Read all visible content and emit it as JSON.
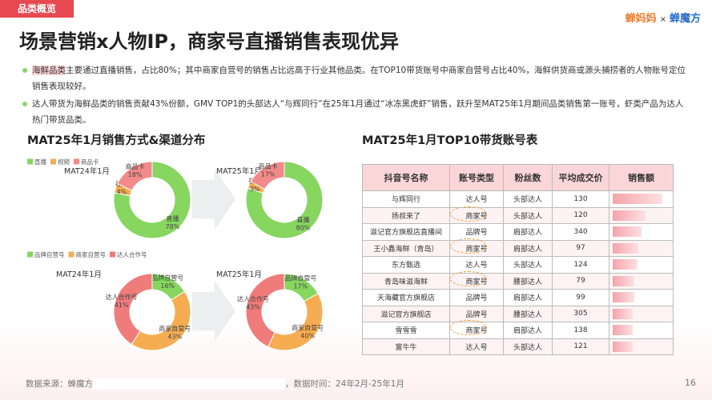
{
  "header": {
    "tag": "品类概览",
    "title": "场景营销x人物IP，商家号直播销售表现优异",
    "logos": [
      "蝉妈妈",
      "×",
      "蝉魔方"
    ]
  },
  "bullets": [
    [
      "海鲜品类",
      "主要通过直播销售，占比80%；其中商家自营号的销售占比远高于行业其他品类。在TOP10带货账号中商家自营号占比40%，海鲜供货商或源头捕捞者的人物账号定位销售表现较好。"
    ],
    [
      "达人带货为海鲜品类的销售贡献43%份额，GMV TOP1的头部达人“与辉同行”在25年1月通过“冰冻黑虎虾”销售，跃升至MAT25年1月期间品类销售第一账号，虾类产品为达人热门带货品类。"
    ]
  ],
  "sections": [
    "MAT25年1月销售方式&渠道分布",
    "MAT25年1月TOP10带货账号表"
  ],
  "chart_data": [
    {
      "type": "pie",
      "title": "MAT24年1月",
      "categories": [
        "直播",
        "视频",
        "商品卡"
      ],
      "values": [
        78,
        4,
        18
      ],
      "value_labels": [
        "78%",
        "4%",
        "18%"
      ],
      "colors": [
        "#86d65f",
        "#f6ad52",
        "#f28a8a"
      ]
    },
    {
      "type": "pie",
      "title": "MAT25年1月",
      "categories": [
        "直播",
        "视频",
        "商品卡"
      ],
      "values": [
        80,
        3,
        17
      ],
      "value_labels": [
        "80%",
        "3%",
        "17%"
      ],
      "colors": [
        "#86d65f",
        "#f6ad52",
        "#f28a8a"
      ]
    },
    {
      "type": "pie",
      "title": "MAT24年1月",
      "categories": [
        "品牌自营号",
        "商家自营号",
        "达人合作号"
      ],
      "values": [
        16,
        43,
        41
      ],
      "value_labels": [
        "16%",
        "43%",
        "41%"
      ],
      "colors": [
        "#86d65f",
        "#f6ad52",
        "#ef7b7b"
      ]
    },
    {
      "type": "pie",
      "title": "MAT25年1月",
      "categories": [
        "品牌自营号",
        "商家自营号",
        "达人合作号"
      ],
      "values": [
        17,
        40,
        43
      ],
      "value_labels": [
        "17%",
        "40%",
        "43%"
      ],
      "colors": [
        "#86d65f",
        "#f6ad52",
        "#ef7b7b"
      ]
    }
  ],
  "table": {
    "columns": [
      "抖音号名称",
      "账号类型",
      "粉丝数",
      "平均成交价",
      "销售额"
    ],
    "rows": [
      [
        "与辉同行",
        "达人号",
        "头部达人",
        130,
        100
      ],
      [
        "扬叔来了",
        "商家号",
        "头部达人",
        120,
        66
      ],
      [
        "滋记官方旗舰店直播间",
        "品牌号",
        "肩部达人",
        340,
        58
      ],
      [
        "王小鑫海鲜（青岛）",
        "商家号",
        "肩部达人",
        97,
        52
      ],
      [
        "东方甄选",
        "达人号",
        "头部达人",
        124,
        50
      ],
      [
        "青岛味滋海鲜",
        "商家号",
        "腰部达人",
        79,
        44
      ],
      [
        "天海藏官方旗舰店",
        "品牌号",
        "肩部达人",
        99,
        43
      ],
      [
        "滋记官方旗舰店",
        "品牌号",
        "腰部达人",
        305,
        41
      ],
      [
        "雪雪雪",
        "商家号",
        "肩部达人",
        138,
        40
      ],
      [
        "富牛牛",
        "达人号",
        "头部达人",
        121,
        40
      ]
    ]
  },
  "footer": {
    "source": "数据来源：蝉魔方",
    "time": "，数据时间：24年2月-25年1月",
    "page": "16"
  }
}
